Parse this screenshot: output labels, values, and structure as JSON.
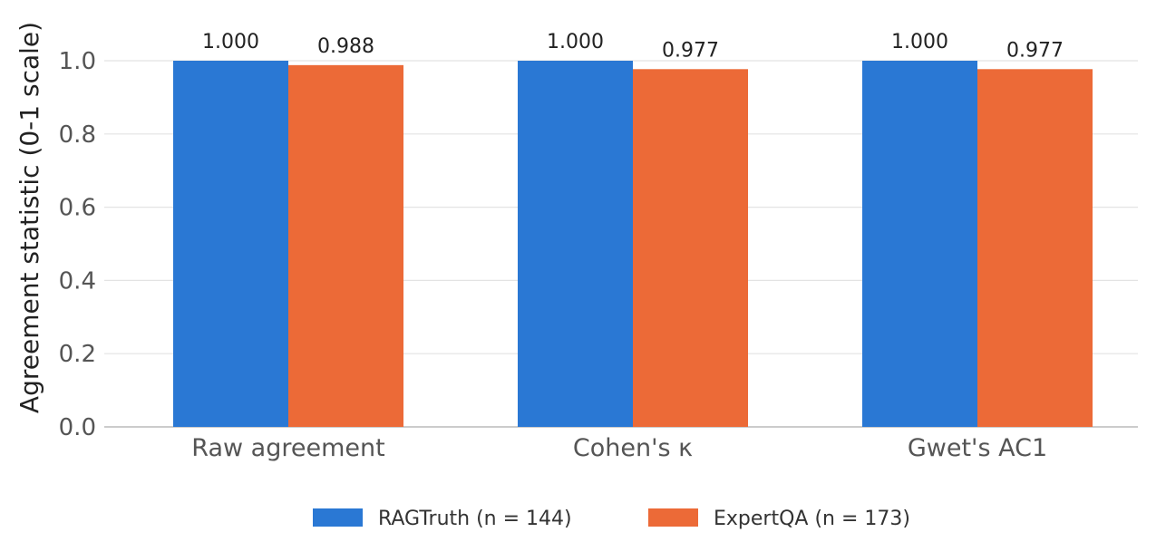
{
  "chart_data": {
    "type": "bar",
    "categories": [
      "Raw agreement",
      "Cohen's κ",
      "Gwet's AC1"
    ],
    "series": [
      {
        "name": "RAGTruth (n = 144)",
        "color": "#2a78d4",
        "values": [
          1.0,
          1.0,
          1.0
        ],
        "labels": [
          "1.000",
          "1.000",
          "1.000"
        ]
      },
      {
        "name": "ExpertQA (n = 173)",
        "color": "#ec6a37",
        "values": [
          0.988,
          0.977,
          0.977
        ],
        "labels": [
          "0.988",
          "0.977",
          "0.977"
        ]
      }
    ],
    "ylabel": "Agreement statistic (0-1 scale)",
    "xlabel": "",
    "ylim": [
      0,
      1.0
    ],
    "yticks": [
      "0.0",
      "0.2",
      "0.4",
      "0.6",
      "0.8",
      "1.0"
    ],
    "grid": true,
    "legend_position": "bottom-center"
  }
}
